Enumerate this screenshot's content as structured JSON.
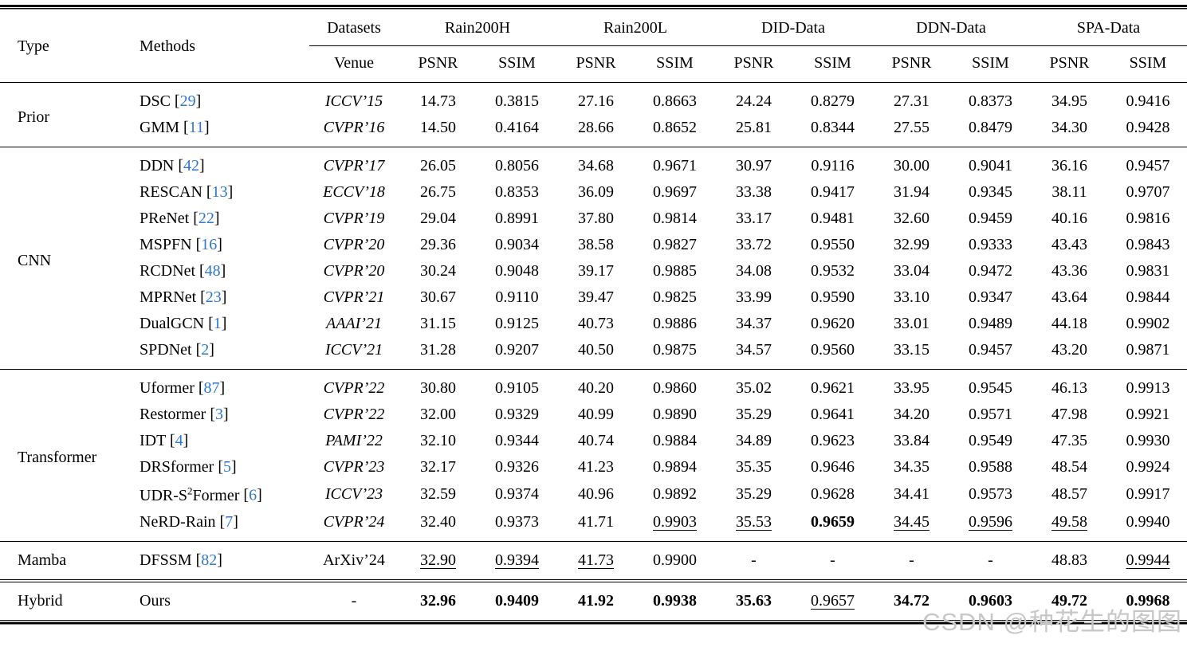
{
  "colors": {
    "citation_blue": "#2e77d0",
    "watermark_gray": "#c7c7c7",
    "text": "#000000",
    "background": "#ffffff"
  },
  "watermark": {
    "text": "CSDN @种花生的图图"
  },
  "header": {
    "type": "Type",
    "methods": "Methods",
    "datasets": "Datasets",
    "venue": "Venue",
    "dataset_groups": [
      "Rain200H",
      "Rain200L",
      "DID-Data",
      "DDN-Data",
      "SPA-Data"
    ],
    "metrics": [
      "PSNR",
      "SSIM"
    ]
  },
  "groups": [
    {
      "type": "Prior",
      "methods": [
        {
          "name": "DSC",
          "ref": "29",
          "venue": "ICCV’15",
          "venue_italic": true,
          "cells": [
            {
              "v": "14.73"
            },
            {
              "v": "0.3815"
            },
            {
              "v": "27.16"
            },
            {
              "v": "0.8663"
            },
            {
              "v": "24.24"
            },
            {
              "v": "0.8279"
            },
            {
              "v": "27.31"
            },
            {
              "v": "0.8373"
            },
            {
              "v": "34.95"
            },
            {
              "v": "0.9416"
            }
          ]
        },
        {
          "name": "GMM",
          "ref": "11",
          "venue": "CVPR’16",
          "venue_italic": true,
          "cells": [
            {
              "v": "14.50"
            },
            {
              "v": "0.4164"
            },
            {
              "v": "28.66"
            },
            {
              "v": "0.8652"
            },
            {
              "v": "25.81"
            },
            {
              "v": "0.8344"
            },
            {
              "v": "27.55"
            },
            {
              "v": "0.8479"
            },
            {
              "v": "34.30"
            },
            {
              "v": "0.9428"
            }
          ]
        }
      ]
    },
    {
      "type": "CNN",
      "methods": [
        {
          "name": "DDN",
          "ref": "42",
          "venue": "CVPR’17",
          "venue_italic": true,
          "cells": [
            {
              "v": "26.05"
            },
            {
              "v": "0.8056"
            },
            {
              "v": "34.68"
            },
            {
              "v": "0.9671"
            },
            {
              "v": "30.97"
            },
            {
              "v": "0.9116"
            },
            {
              "v": "30.00"
            },
            {
              "v": "0.9041"
            },
            {
              "v": "36.16"
            },
            {
              "v": "0.9457"
            }
          ]
        },
        {
          "name": "RESCAN",
          "ref": "13",
          "venue": "ECCV’18",
          "venue_italic": true,
          "cells": [
            {
              "v": "26.75"
            },
            {
              "v": "0.8353"
            },
            {
              "v": "36.09"
            },
            {
              "v": "0.9697"
            },
            {
              "v": "33.38"
            },
            {
              "v": "0.9417"
            },
            {
              "v": "31.94"
            },
            {
              "v": "0.9345"
            },
            {
              "v": "38.11"
            },
            {
              "v": "0.9707"
            }
          ]
        },
        {
          "name": "PReNet",
          "ref": "22",
          "venue": "CVPR’19",
          "venue_italic": true,
          "cells": [
            {
              "v": "29.04"
            },
            {
              "v": "0.8991"
            },
            {
              "v": "37.80"
            },
            {
              "v": "0.9814"
            },
            {
              "v": "33.17"
            },
            {
              "v": "0.9481"
            },
            {
              "v": "32.60"
            },
            {
              "v": "0.9459"
            },
            {
              "v": "40.16"
            },
            {
              "v": "0.9816"
            }
          ]
        },
        {
          "name": "MSPFN",
          "ref": "16",
          "venue": "CVPR’20",
          "venue_italic": true,
          "cells": [
            {
              "v": "29.36"
            },
            {
              "v": "0.9034"
            },
            {
              "v": "38.58"
            },
            {
              "v": "0.9827"
            },
            {
              "v": "33.72"
            },
            {
              "v": "0.9550"
            },
            {
              "v": "32.99"
            },
            {
              "v": "0.9333"
            },
            {
              "v": "43.43"
            },
            {
              "v": "0.9843"
            }
          ]
        },
        {
          "name": "RCDNet",
          "ref": "48",
          "venue": "CVPR’20",
          "venue_italic": true,
          "cells": [
            {
              "v": "30.24"
            },
            {
              "v": "0.9048"
            },
            {
              "v": "39.17"
            },
            {
              "v": "0.9885"
            },
            {
              "v": "34.08"
            },
            {
              "v": "0.9532"
            },
            {
              "v": "33.04"
            },
            {
              "v": "0.9472"
            },
            {
              "v": "43.36"
            },
            {
              "v": "0.9831"
            }
          ]
        },
        {
          "name": "MPRNet",
          "ref": "23",
          "venue": "CVPR’21",
          "venue_italic": true,
          "cells": [
            {
              "v": "30.67"
            },
            {
              "v": "0.9110"
            },
            {
              "v": "39.47"
            },
            {
              "v": "0.9825"
            },
            {
              "v": "33.99"
            },
            {
              "v": "0.9590"
            },
            {
              "v": "33.10"
            },
            {
              "v": "0.9347"
            },
            {
              "v": "43.64"
            },
            {
              "v": "0.9844"
            }
          ]
        },
        {
          "name": "DualGCN",
          "ref": "1",
          "venue": "AAAI’21",
          "venue_italic": true,
          "cells": [
            {
              "v": "31.15"
            },
            {
              "v": "0.9125"
            },
            {
              "v": "40.73"
            },
            {
              "v": "0.9886"
            },
            {
              "v": "34.37"
            },
            {
              "v": "0.9620"
            },
            {
              "v": "33.01"
            },
            {
              "v": "0.9489"
            },
            {
              "v": "44.18"
            },
            {
              "v": "0.9902"
            }
          ]
        },
        {
          "name": "SPDNet",
          "ref": "2",
          "venue": "ICCV’21",
          "venue_italic": true,
          "cells": [
            {
              "v": "31.28"
            },
            {
              "v": "0.9207"
            },
            {
              "v": "40.50"
            },
            {
              "v": "0.9875"
            },
            {
              "v": "34.57"
            },
            {
              "v": "0.9560"
            },
            {
              "v": "33.15"
            },
            {
              "v": "0.9457"
            },
            {
              "v": "43.20"
            },
            {
              "v": "0.9871"
            }
          ]
        }
      ]
    },
    {
      "type": "Transformer",
      "methods": [
        {
          "name": "Uformer",
          "ref": "87",
          "venue": "CVPR’22",
          "venue_italic": true,
          "cells": [
            {
              "v": "30.80"
            },
            {
              "v": "0.9105"
            },
            {
              "v": "40.20"
            },
            {
              "v": "0.9860"
            },
            {
              "v": "35.02"
            },
            {
              "v": "0.9621"
            },
            {
              "v": "33.95"
            },
            {
              "v": "0.9545"
            },
            {
              "v": "46.13"
            },
            {
              "v": "0.9913"
            }
          ]
        },
        {
          "name": "Restormer",
          "ref": "3",
          "venue": "CVPR’22",
          "venue_italic": true,
          "cells": [
            {
              "v": "32.00"
            },
            {
              "v": "0.9329"
            },
            {
              "v": "40.99"
            },
            {
              "v": "0.9890"
            },
            {
              "v": "35.29"
            },
            {
              "v": "0.9641"
            },
            {
              "v": "34.20"
            },
            {
              "v": "0.9571"
            },
            {
              "v": "47.98"
            },
            {
              "v": "0.9921"
            }
          ]
        },
        {
          "name": "IDT",
          "ref": "4",
          "venue": "PAMI’22",
          "venue_italic": true,
          "cells": [
            {
              "v": "32.10"
            },
            {
              "v": "0.9344"
            },
            {
              "v": "40.74"
            },
            {
              "v": "0.9884"
            },
            {
              "v": "34.89"
            },
            {
              "v": "0.9623"
            },
            {
              "v": "33.84"
            },
            {
              "v": "0.9549"
            },
            {
              "v": "47.35"
            },
            {
              "v": "0.9930"
            }
          ]
        },
        {
          "name": "DRSformer",
          "ref": "5",
          "venue": "CVPR’23",
          "venue_italic": true,
          "cells": [
            {
              "v": "32.17"
            },
            {
              "v": "0.9326"
            },
            {
              "v": "41.23"
            },
            {
              "v": "0.9894"
            },
            {
              "v": "35.35"
            },
            {
              "v": "0.9646"
            },
            {
              "v": "34.35"
            },
            {
              "v": "0.9588"
            },
            {
              "v": "48.54"
            },
            {
              "v": "0.9924"
            }
          ]
        },
        {
          "name": "UDR-S^2Former",
          "ref": "6",
          "venue": "ICCV’23",
          "venue_italic": true,
          "cells": [
            {
              "v": "32.59"
            },
            {
              "v": "0.9374"
            },
            {
              "v": "40.96"
            },
            {
              "v": "0.9892"
            },
            {
              "v": "35.29"
            },
            {
              "v": "0.9628"
            },
            {
              "v": "34.41"
            },
            {
              "v": "0.9573"
            },
            {
              "v": "48.57"
            },
            {
              "v": "0.9917"
            }
          ]
        },
        {
          "name": "NeRD-Rain",
          "ref": "7",
          "venue": "CVPR’24",
          "venue_italic": true,
          "cells": [
            {
              "v": "32.40"
            },
            {
              "v": "0.9373"
            },
            {
              "v": "41.71"
            },
            {
              "v": "0.9903",
              "s": "u"
            },
            {
              "v": "35.53",
              "s": "u"
            },
            {
              "v": "0.9659",
              "s": "b"
            },
            {
              "v": "34.45",
              "s": "u"
            },
            {
              "v": "0.9596",
              "s": "u"
            },
            {
              "v": "49.58",
              "s": "u"
            },
            {
              "v": "0.9940"
            }
          ]
        }
      ]
    },
    {
      "type": "Mamba",
      "methods": [
        {
          "name": "DFSSM",
          "ref": "82",
          "venue": "ArXiv’24",
          "venue_italic": false,
          "cells": [
            {
              "v": "32.90",
              "s": "u"
            },
            {
              "v": "0.9394",
              "s": "u"
            },
            {
              "v": "41.73",
              "s": "u"
            },
            {
              "v": "0.9900"
            },
            {
              "v": "-"
            },
            {
              "v": "-"
            },
            {
              "v": "-"
            },
            {
              "v": "-"
            },
            {
              "v": "48.83"
            },
            {
              "v": "0.9944",
              "s": "u"
            }
          ]
        }
      ]
    },
    {
      "type": "Hybrid",
      "methods": [
        {
          "name": "Ours",
          "ref": null,
          "venue": "-",
          "venue_italic": false,
          "cells": [
            {
              "v": "32.96",
              "s": "b"
            },
            {
              "v": "0.9409",
              "s": "b"
            },
            {
              "v": "41.92",
              "s": "b"
            },
            {
              "v": "0.9938",
              "s": "b"
            },
            {
              "v": "35.63",
              "s": "b"
            },
            {
              "v": "0.9657",
              "s": "u"
            },
            {
              "v": "34.72",
              "s": "b"
            },
            {
              "v": "0.9603",
              "s": "b"
            },
            {
              "v": "49.72",
              "s": "b"
            },
            {
              "v": "0.9968",
              "s": "b"
            }
          ]
        }
      ]
    }
  ]
}
